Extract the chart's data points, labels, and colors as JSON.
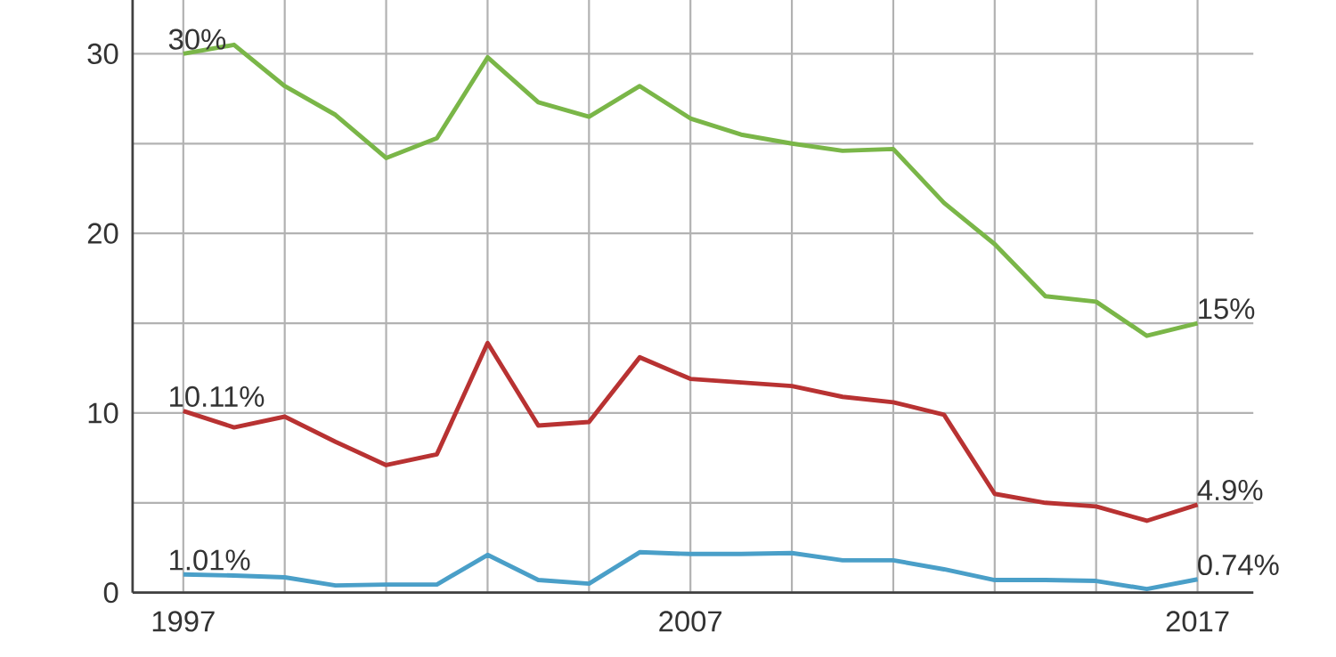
{
  "chart_data": {
    "type": "line",
    "x": [
      1997,
      1998,
      1999,
      2000,
      2001,
      2002,
      2003,
      2004,
      2005,
      2006,
      2007,
      2008,
      2009,
      2010,
      2011,
      2012,
      2013,
      2014,
      2015,
      2016,
      2017
    ],
    "series": [
      {
        "color": "#7ab648",
        "values": [
          30,
          30.5,
          28.2,
          26.6,
          24.2,
          25.3,
          29.8,
          27.3,
          26.5,
          28.2,
          26.4,
          25.5,
          25.0,
          24.6,
          24.7,
          21.7,
          19.4,
          16.5,
          16.2,
          14.3,
          15
        ],
        "value_labels": [
          "30%",
          null,
          null,
          null,
          null,
          null,
          null,
          null,
          null,
          null,
          null,
          null,
          null,
          null,
          null,
          null,
          null,
          null,
          null,
          null,
          "15%"
        ]
      },
      {
        "color": "#b83232",
        "values": [
          10.11,
          9.2,
          9.8,
          8.4,
          7.1,
          7.7,
          13.9,
          9.3,
          9.5,
          13.1,
          11.9,
          11.7,
          11.5,
          10.9,
          10.6,
          9.9,
          5.5,
          5.0,
          4.8,
          4.0,
          4.9
        ],
        "value_labels": [
          "10.11%",
          null,
          null,
          null,
          null,
          null,
          null,
          null,
          null,
          null,
          null,
          null,
          null,
          null,
          null,
          null,
          null,
          null,
          null,
          null,
          "4.9%"
        ]
      },
      {
        "color": "#4a9fc8",
        "values": [
          1.01,
          0.95,
          0.85,
          0.4,
          0.45,
          0.45,
          2.1,
          0.7,
          0.5,
          2.25,
          2.15,
          2.15,
          2.2,
          1.8,
          1.8,
          1.3,
          0.7,
          0.7,
          0.65,
          0.2,
          0.74
        ],
        "value_labels": [
          "1.01%",
          null,
          null,
          null,
          null,
          null,
          null,
          null,
          null,
          null,
          null,
          null,
          null,
          null,
          null,
          null,
          null,
          null,
          null,
          null,
          "0.74%"
        ]
      }
    ],
    "xlim": [
      1996,
      2018.1
    ],
    "ylim": [
      0,
      33
    ],
    "xticks": [
      1997,
      {
        "value": 1999,
        "label": null
      },
      {
        "value": 2001,
        "label": null
      },
      {
        "value": 2003,
        "label": null
      },
      {
        "value": 2005,
        "label": null
      },
      2007,
      {
        "value": 2009,
        "label": null
      },
      {
        "value": 2011,
        "label": null
      },
      {
        "value": 2013,
        "label": null
      },
      {
        "value": 2015,
        "label": null
      },
      2017
    ],
    "yticks": [
      0,
      {
        "value": 5,
        "label": null
      },
      10,
      {
        "value": 15,
        "label": null
      },
      20,
      {
        "value": 25,
        "label": null
      },
      30
    ],
    "grid": true
  }
}
